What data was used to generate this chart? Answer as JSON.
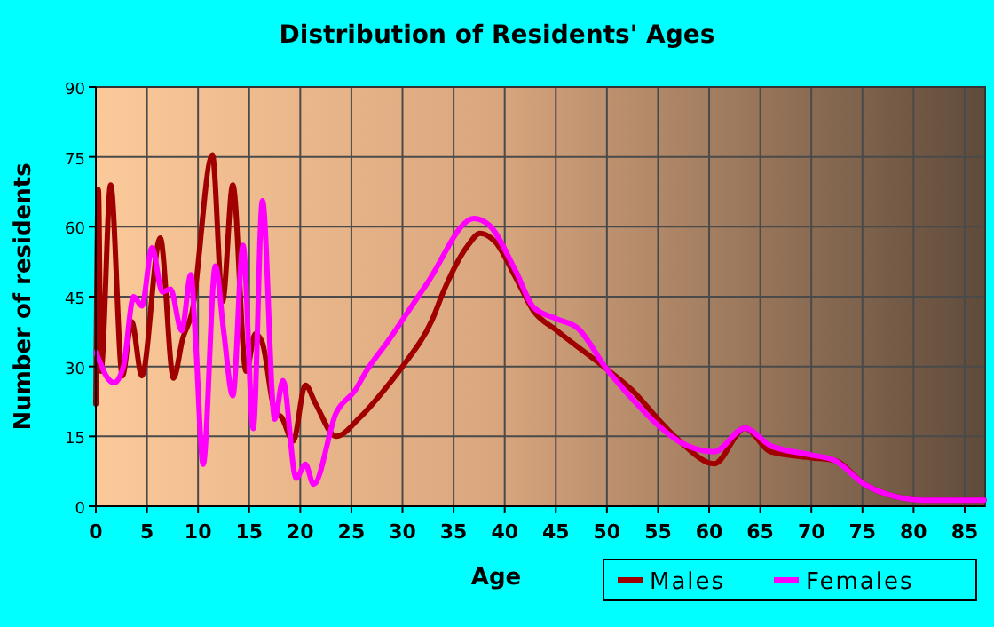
{
  "chart_data": {
    "type": "line",
    "title": "Distribution of Residents' Ages",
    "xlabel": "Age",
    "ylabel": "Number of residents",
    "xlim": [
      0,
      87
    ],
    "ylim": [
      0,
      90
    ],
    "xticks": [
      0,
      5,
      10,
      15,
      20,
      25,
      30,
      35,
      40,
      45,
      50,
      55,
      60,
      65,
      70,
      75,
      80,
      85
    ],
    "yticks": [
      0,
      15,
      30,
      45,
      60,
      75,
      90
    ],
    "grid": true,
    "legend": "bottom right",
    "line_style": "solid",
    "marker": "none",
    "series": [
      {
        "name": "Males",
        "color": "#a00000",
        "x": [
          0,
          0.25,
          0.5,
          1.45,
          2.6,
          3.5,
          4.5,
          6.3,
          7.6,
          8.5,
          9.4,
          11.4,
          12.4,
          13.4,
          14.7,
          15.6,
          16.3,
          17.5,
          18.2,
          19.3,
          20.5,
          21.5,
          23.5,
          25.8,
          28.7,
          30,
          32.9,
          34.1,
          36.4,
          37.6,
          39.1,
          41.1,
          42.8,
          45.1,
          50,
          52.7,
          55,
          57.3,
          60.5,
          63.5,
          66,
          70,
          72.3,
          75.2,
          78,
          81,
          86.9
        ],
        "values": [
          22,
          68,
          29,
          69,
          28,
          39.6,
          28,
          57.6,
          27.5,
          36,
          41.5,
          75.4,
          44,
          69,
          29,
          37,
          35,
          20.5,
          19,
          14,
          26,
          22,
          15,
          19,
          26.3,
          30,
          40,
          46.6,
          56,
          58.6,
          56.7,
          49,
          42,
          37.7,
          29.4,
          24.4,
          18.7,
          13.6,
          9.1,
          16.8,
          11.7,
          10.4,
          9.8,
          4.7,
          2.2,
          1.3,
          1.3
        ]
      },
      {
        "name": "Females",
        "color": "#ff00ff",
        "x": [
          0,
          0.4,
          1,
          1.8,
          2.7,
          3.7,
          4.5,
          5.5,
          6.5,
          7.3,
          8.4,
          9.3,
          9.8,
          10.5,
          11.7,
          12.5,
          13.4,
          14.4,
          15.4,
          16.3,
          17.5,
          18.3,
          19.6,
          20.5,
          21.3,
          23.5,
          25.4,
          26.4,
          28.7,
          30,
          32.4,
          37,
          38.5,
          41.1,
          42.8,
          45.1,
          47.1,
          50,
          52.7,
          55,
          57.3,
          60.5,
          63.5,
          66,
          70,
          72.3,
          75.2,
          78,
          81,
          86.9
        ],
        "values": [
          33,
          31,
          28,
          26.5,
          30,
          45,
          43,
          55.5,
          46,
          46.6,
          37.7,
          49.7,
          34,
          9,
          51.6,
          37.7,
          23.7,
          56,
          16.7,
          65.6,
          18.7,
          27,
          6,
          9,
          4.7,
          20,
          25,
          28.8,
          35.8,
          40,
          47.8,
          61.8,
          60.3,
          50.4,
          42.8,
          40.2,
          38.3,
          29.4,
          22.5,
          17.4,
          13.6,
          11.7,
          16.8,
          13,
          11,
          9.8,
          4.7,
          2.2,
          1.3,
          1.3
        ]
      }
    ]
  }
}
